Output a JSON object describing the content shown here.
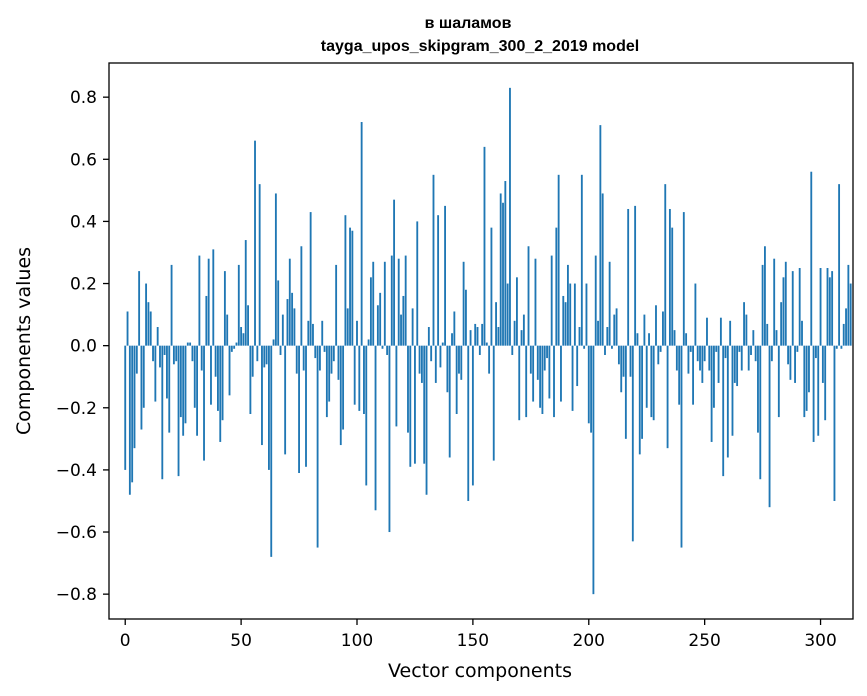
{
  "chart_data": {
    "type": "bar",
    "title": "в шаламов",
    "subtitle": "tayga_upos_skipgram_300_2_2019 model",
    "xlabel": "Vector components",
    "ylabel": "Components values",
    "xlim": [
      -7,
      314
    ],
    "ylim": [
      -0.88,
      0.91
    ],
    "xticks": [
      0,
      50,
      100,
      150,
      200,
      250,
      300
    ],
    "yticks": [
      -0.8,
      -0.6,
      -0.4,
      -0.2,
      0.0,
      0.2,
      0.4,
      0.6,
      0.8
    ],
    "xtick_labels": [
      "0",
      "50",
      "100",
      "150",
      "200",
      "250",
      "300"
    ],
    "ytick_labels": [
      "−0.8",
      "−0.6",
      "−0.4",
      "−0.2",
      "0.0",
      "0.2",
      "0.4",
      "0.6",
      "0.8"
    ],
    "bar_color": "#1f77b4",
    "values": [
      -0.4,
      0.11,
      -0.48,
      -0.44,
      -0.33,
      -0.09,
      0.24,
      -0.27,
      -0.2,
      0.2,
      0.14,
      0.11,
      -0.05,
      -0.18,
      0.06,
      -0.07,
      -0.43,
      -0.03,
      -0.17,
      -0.28,
      0.26,
      -0.06,
      -0.05,
      -0.42,
      -0.23,
      -0.29,
      -0.25,
      0.01,
      0.01,
      -0.05,
      -0.2,
      -0.29,
      0.29,
      -0.08,
      -0.37,
      0.16,
      0.28,
      -0.19,
      0.31,
      -0.1,
      -0.21,
      -0.31,
      -0.24,
      0.24,
      0.1,
      -0.16,
      -0.02,
      -0.01,
      0.01,
      0.26,
      0.06,
      0.04,
      0.34,
      0.13,
      -0.22,
      -0.1,
      0.66,
      -0.05,
      0.52,
      -0.32,
      -0.07,
      -0.06,
      -0.4,
      -0.68,
      0.02,
      0.49,
      0.21,
      -0.03,
      0.1,
      -0.35,
      0.15,
      0.28,
      0.17,
      0.12,
      -0.09,
      -0.41,
      0.32,
      -0.08,
      -0.39,
      0.08,
      0.43,
      0.07,
      -0.04,
      -0.65,
      -0.08,
      0.08,
      -0.02,
      -0.23,
      -0.18,
      -0.09,
      -0.05,
      0.26,
      -0.11,
      -0.32,
      -0.27,
      0.42,
      0.12,
      0.38,
      0.37,
      -0.19,
      0.08,
      -0.21,
      0.72,
      -0.22,
      -0.45,
      0.02,
      0.22,
      0.27,
      -0.53,
      0.13,
      0.17,
      -0.01,
      0.27,
      -0.03,
      -0.6,
      0.29,
      0.47,
      -0.26,
      0.28,
      0.1,
      0.16,
      0.29,
      -0.28,
      -0.39,
      0.12,
      -0.38,
      0.4,
      -0.09,
      -0.12,
      -0.38,
      -0.48,
      0.06,
      -0.05,
      0.55,
      -0.12,
      0.42,
      -0.07,
      0.01,
      0.45,
      -0.15,
      -0.36,
      0.04,
      0.11,
      -0.22,
      -0.09,
      -0.11,
      0.27,
      0.18,
      -0.5,
      0.05,
      -0.45,
      0.07,
      0.06,
      -0.03,
      0.07,
      0.64,
      0.01,
      -0.09,
      0.38,
      -0.37,
      0.14,
      0.06,
      0.49,
      0.46,
      0.53,
      0.2,
      0.83,
      -0.03,
      0.08,
      0.22,
      -0.24,
      0.05,
      0.1,
      -0.23,
      0.32,
      -0.09,
      -0.18,
      0.28,
      -0.11,
      -0.2,
      -0.22,
      -0.08,
      -0.04,
      -0.17,
      0.29,
      -0.23,
      0.38,
      0.55,
      -0.18,
      0.16,
      0.14,
      0.26,
      0.2,
      -0.21,
      0.2,
      -0.13,
      0.06,
      0.55,
      -0.01,
      0.2,
      -0.25,
      -0.28,
      -0.8,
      0.29,
      0.08,
      0.71,
      0.49,
      -0.03,
      0.06,
      0.27,
      -0.01,
      0.1,
      0.12,
      -0.06,
      -0.15,
      -0.1,
      -0.3,
      0.44,
      -0.1,
      -0.63,
      0.45,
      0.04,
      -0.35,
      -0.3,
      0.1,
      -0.2,
      0.04,
      -0.23,
      -0.24,
      0.13,
      -0.06,
      -0.02,
      0.11,
      0.52,
      -0.33,
      0.44,
      0.38,
      0.05,
      -0.08,
      -0.19,
      -0.65,
      0.43,
      0.04,
      -0.09,
      -0.02,
      -0.19,
      0.2,
      -0.05,
      -0.08,
      -0.12,
      -0.05,
      0.09,
      -0.08,
      -0.31,
      -0.2,
      -0.02,
      -0.12,
      0.09,
      -0.42,
      -0.04,
      -0.36,
      0.08,
      -0.29,
      -0.12,
      -0.13,
      -0.02,
      -0.08,
      0.14,
      0.1,
      -0.08,
      -0.03,
      0.05,
      -0.05,
      -0.28,
      -0.43,
      0.26,
      0.32,
      0.07,
      -0.52,
      -0.05,
      0.28,
      0.05,
      -0.23,
      0.14,
      0.22,
      0.27,
      -0.06,
      -0.11,
      0.24,
      -0.12,
      -0.02,
      0.25,
      0.08,
      -0.23,
      -0.21,
      -0.15,
      0.56,
      -0.31,
      -0.04,
      -0.29,
      0.25,
      -0.12,
      -0.24,
      0.25,
      0.22,
      0.24,
      -0.5,
      -0.01,
      0.52,
      -0.01,
      0.07,
      0.12,
      0.26,
      0.2
    ]
  }
}
